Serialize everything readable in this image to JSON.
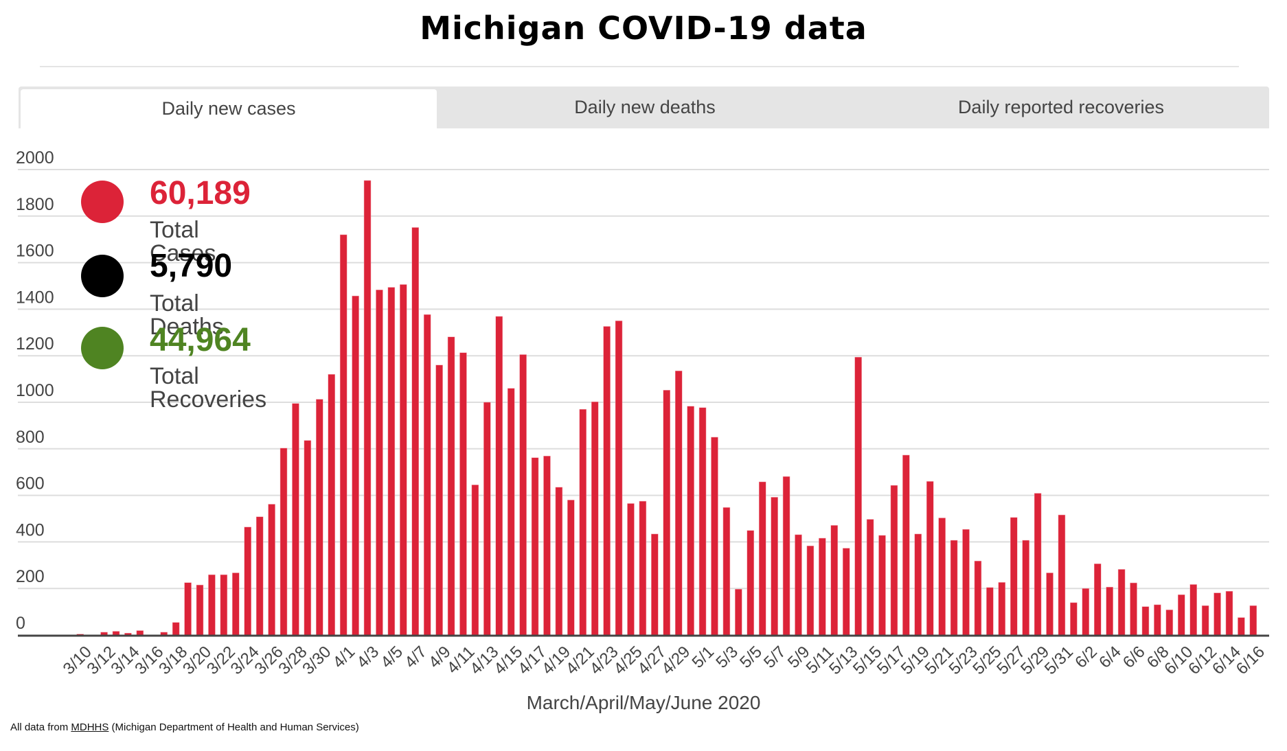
{
  "header": {
    "title": "Michigan COVID-19 data"
  },
  "tabs": [
    {
      "label": "Daily new cases",
      "active": true
    },
    {
      "label": "Daily new deaths",
      "active": false
    },
    {
      "label": "Daily reported recoveries",
      "active": false
    }
  ],
  "totals": [
    {
      "value": "60,189",
      "label": "Total Cases",
      "color": "#dc2338"
    },
    {
      "value": "5,790",
      "label": "Total Deaths",
      "color": "#000000"
    },
    {
      "value": "44,964",
      "label": "Total Recoveries",
      "color": "#4f8422"
    }
  ],
  "footer": {
    "prefix": "All data from ",
    "link": "MDHHS",
    "suffix": " (Michigan Department of Health and Human Services)"
  },
  "chart_data": {
    "type": "bar",
    "title": "Daily new cases",
    "xlabel": "March/April/May/June 2020",
    "ylabel": "",
    "ylim": [
      0,
      2000
    ],
    "yticks": [
      0,
      200,
      400,
      600,
      800,
      1000,
      1200,
      1400,
      1600,
      1800,
      2000
    ],
    "grid": true,
    "bar_color": "#dc2338",
    "label_every": 2,
    "categories": [
      "3/10",
      "3/11",
      "3/12",
      "3/13",
      "3/14",
      "3/15",
      "3/16",
      "3/17",
      "3/18",
      "3/19",
      "3/20",
      "3/21",
      "3/22",
      "3/23",
      "3/24",
      "3/25",
      "3/26",
      "3/27",
      "3/28",
      "3/29",
      "3/30",
      "3/31",
      "4/1",
      "4/2",
      "4/3",
      "4/4",
      "4/5",
      "4/6",
      "4/7",
      "4/8",
      "4/9",
      "4/10",
      "4/11",
      "4/12",
      "4/13",
      "4/14",
      "4/15",
      "4/16",
      "4/17",
      "4/18",
      "4/19",
      "4/20",
      "4/21",
      "4/22",
      "4/23",
      "4/24",
      "4/25",
      "4/26",
      "4/27",
      "4/28",
      "4/29",
      "4/30",
      "5/1",
      "5/2",
      "5/3",
      "5/4",
      "5/5",
      "5/6",
      "5/7",
      "5/8",
      "5/9",
      "5/10",
      "5/11",
      "5/12",
      "5/13",
      "5/14",
      "5/15",
      "5/16",
      "5/17",
      "5/18",
      "5/19",
      "5/20",
      "5/21",
      "5/22",
      "5/23",
      "5/24",
      "5/25",
      "5/26",
      "5/27",
      "5/28",
      "5/29",
      "5/30",
      "5/31",
      "6/1",
      "6/2",
      "6/3",
      "6/4",
      "6/5",
      "6/6",
      "6/7",
      "6/8",
      "6/9",
      "6/10",
      "6/11",
      "6/12",
      "6/13",
      "6/14",
      "6/15",
      "6/16"
    ],
    "values": [
      4,
      0,
      12,
      16,
      8,
      19,
      0,
      12,
      54,
      225,
      215,
      259,
      259,
      267,
      464,
      508,
      562,
      803,
      995,
      836,
      1013,
      1120,
      1720,
      1457,
      1953,
      1483,
      1494,
      1506,
      1751,
      1377,
      1160,
      1281,
      1213,
      645,
      1000,
      1369,
      1060,
      1205,
      762,
      769,
      635,
      580,
      970,
      1002,
      1326,
      1350,
      565,
      575,
      434,
      1052,
      1135,
      983,
      977,
      850,
      548,
      197,
      449,
      658,
      592,
      681,
      431,
      383,
      416,
      471,
      373,
      1194,
      497,
      428,
      643,
      773,
      434,
      660,
      503,
      407,
      454,
      318,
      204,
      226,
      505,
      407,
      609,
      267,
      516,
      139,
      200,
      306,
      206,
      282,
      224,
      122,
      130,
      108,
      173,
      217,
      126,
      181,
      188,
      75,
      126
    ]
  }
}
